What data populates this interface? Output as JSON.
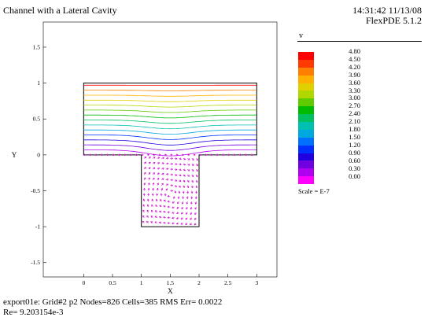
{
  "header": {
    "title": "Channel with a Lateral Cavity",
    "timestamp": "14:31:42 11/13/08",
    "version": "FlexPDE 5.1.2"
  },
  "legend": {
    "variable": "v",
    "levels": [
      "4.80",
      "4.50",
      "4.20",
      "3.90",
      "3.60",
      "3.30",
      "3.00",
      "2.70",
      "2.40",
      "2.10",
      "1.80",
      "1.50",
      "1.20",
      "0.90",
      "0.60",
      "0.30",
      "0.00"
    ],
    "colors": [
      "#ff0000",
      "#ff3a00",
      "#ff8000",
      "#ffb000",
      "#e0d000",
      "#b0d800",
      "#60cc00",
      "#00bb00",
      "#00c060",
      "#00c0b0",
      "#00a8e0",
      "#0070ff",
      "#0030ff",
      "#2000e0",
      "#7000e0",
      "#b000f0",
      "#ff00ff"
    ],
    "scale_note": "Scale = E-7"
  },
  "footer": {
    "line1": "export01e:  Grid#2  p2  Nodes=826 Cells=385 RMS Err= 0.0022",
    "line2": "Re=  9.203154e-3"
  },
  "chart_data": {
    "type": "vector-contour",
    "title": "Channel with a Lateral Cavity",
    "xlabel": "X",
    "ylabel": "Y",
    "xlim": [
      -0.7,
      3.35
    ],
    "ylim": [
      -1.7,
      1.85
    ],
    "xticks": [
      0,
      0.5,
      1,
      1.5,
      2,
      2.5,
      3
    ],
    "xtick_labels": [
      "0",
      "0.5",
      "1",
      "1.5",
      "2",
      "2.5",
      "3"
    ],
    "yticks": [
      1.5,
      1,
      0.5,
      0,
      -0.5,
      -1,
      -1.5
    ],
    "ytick_labels": [
      "1.5",
      "1",
      "0.5",
      "0",
      "-0.5",
      "-1",
      "-1.5"
    ],
    "channel": {
      "x": [
        0,
        3
      ],
      "y": [
        0,
        1
      ]
    },
    "cavity": {
      "x": [
        1,
        2
      ],
      "y": [
        -1,
        0
      ]
    },
    "grid": false
  }
}
